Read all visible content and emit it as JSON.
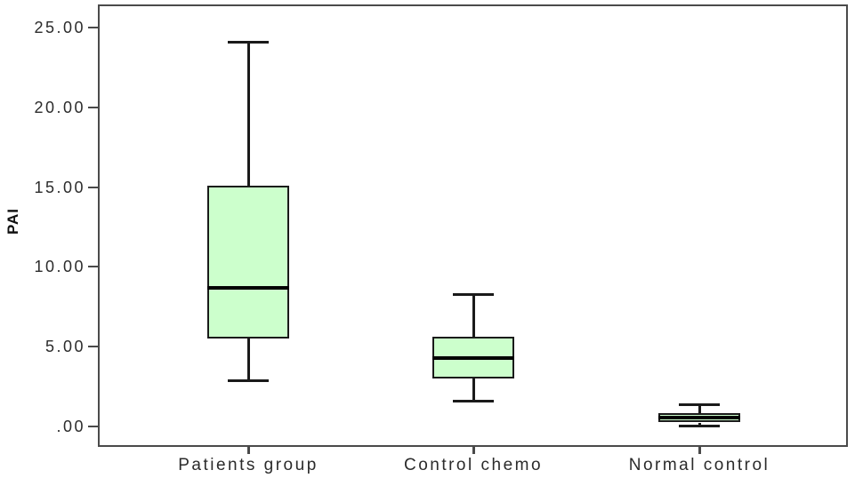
{
  "chart_data": {
    "type": "boxplot",
    "title": "",
    "xlabel": "",
    "ylabel": "PAI",
    "ylim": [
      -1.3,
      26.4
    ],
    "grid": false,
    "legend": false,
    "yticks": [
      {
        "value": 0,
        "label": ".00"
      },
      {
        "value": 5,
        "label": "5.00"
      },
      {
        "value": 10,
        "label": "10.00"
      },
      {
        "value": 15,
        "label": "15.00"
      },
      {
        "value": 20,
        "label": "20.00"
      },
      {
        "value": 25,
        "label": "25.00"
      }
    ],
    "categories": [
      "Patients group",
      "Control chemo",
      "Normal control"
    ],
    "series": [
      {
        "category": "Patients group",
        "whisker_low": 2.9,
        "q1": 5.5,
        "median": 8.7,
        "q3": 15.1,
        "whisker_high": 24.1
      },
      {
        "category": "Control chemo",
        "whisker_low": 1.6,
        "q1": 3.0,
        "median": 4.3,
        "q3": 5.6,
        "whisker_high": 8.3
      },
      {
        "category": "Normal control",
        "whisker_low": 0.05,
        "q1": 0.25,
        "median": 0.55,
        "q3": 0.85,
        "whisker_high": 1.4
      }
    ],
    "colors": {
      "box_fill": "#ccffcc",
      "box_border": "#1a1a1a",
      "median": "#000000",
      "whisker": "#1a1a1a",
      "frame": "#4a4a4a",
      "text": "#2b2b2b",
      "background": "#ffffff"
    }
  }
}
